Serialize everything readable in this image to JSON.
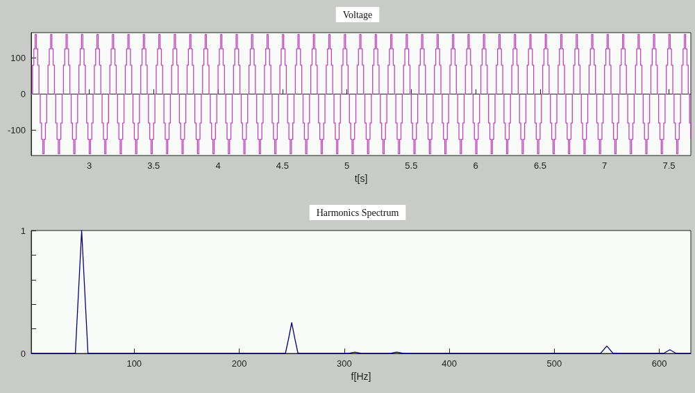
{
  "chart_data": [
    {
      "type": "step",
      "title": "Voltage",
      "xlabel": "t[s]",
      "xlim": [
        2.55,
        7.67
      ],
      "ylim": [
        -170,
        170
      ],
      "xticks": [
        3,
        3.5,
        4,
        4.5,
        5,
        5.5,
        6,
        6.5,
        7,
        7.5
      ],
      "yticks": [
        -100,
        0,
        100
      ],
      "x": [
        2.55,
        2.56,
        2.57,
        2.58,
        2.59,
        2.6,
        2.61,
        2.62,
        2.63,
        2.64,
        2.65,
        2.66,
        2.67,
        2.68,
        2.69,
        2.7,
        2.71,
        2.72,
        2.73,
        2.74,
        2.75,
        2.76,
        2.77,
        2.78,
        2.79,
        2.8,
        2.81,
        2.82,
        2.83,
        2.84,
        2.85,
        2.86,
        2.87,
        2.88,
        2.89,
        2.9,
        2.91,
        2.92,
        2.93,
        2.94,
        2.95,
        2.96,
        2.97,
        2.98,
        2.99,
        3,
        3.01,
        3.02,
        3.03,
        3.04,
        3.05,
        3.06,
        3.07,
        3.08,
        3.09,
        3.1,
        3.11,
        3.12,
        3.13,
        3.14,
        3.15,
        3.16,
        3.17,
        3.18,
        3.19,
        3.2,
        3.21,
        3.22,
        3.23,
        3.24,
        3.25,
        3.26,
        3.27,
        3.28,
        3.29,
        3.3,
        3.31,
        3.32,
        3.33,
        3.34,
        3.35,
        3.36,
        3.37,
        3.38,
        3.39,
        3.4,
        3.41,
        3.42,
        3.43,
        3.44,
        3.45,
        3.46,
        3.47,
        3.48,
        3.49,
        3.5,
        3.51,
        3.52,
        3.53,
        3.54,
        3.55,
        3.56,
        3.57,
        3.58,
        3.59,
        3.6,
        3.61,
        3.62,
        3.63,
        3.64,
        3.65,
        3.66,
        3.67,
        3.68,
        3.69,
        3.7,
        3.71,
        3.72,
        3.73,
        3.74,
        3.75,
        3.76,
        3.77,
        3.78,
        3.79,
        3.8,
        3.81,
        3.82,
        3.83,
        3.84,
        3.85,
        3.86,
        3.87,
        3.88,
        3.89,
        3.9,
        3.91,
        3.92,
        3.93,
        3.94,
        3.95,
        3.96,
        3.97,
        3.98,
        3.99,
        4,
        4.01,
        4.02,
        4.03,
        4.04,
        4.05,
        4.06,
        4.07,
        4.08,
        4.09,
        4.1,
        4.11,
        4.12,
        4.13,
        4.14,
        4.15,
        4.16,
        4.17,
        4.18,
        4.19,
        4.2,
        4.21,
        4.22,
        4.23,
        4.24,
        4.25,
        4.26,
        4.27,
        4.28,
        4.29,
        4.3,
        4.31,
        4.32,
        4.33,
        4.34,
        4.35,
        4.36,
        4.37,
        4.38,
        4.39,
        4.4,
        4.41,
        4.42,
        4.43,
        4.44,
        4.45,
        4.46,
        4.47,
        4.48,
        4.49,
        4.5,
        4.51,
        4.52,
        4.53,
        4.54,
        4.55,
        4.56,
        4.57,
        4.58,
        4.59,
        4.6,
        4.61,
        4.62,
        4.63,
        4.64,
        4.65,
        4.66,
        4.67,
        4.68,
        4.69,
        4.7,
        4.71,
        4.72,
        4.73,
        4.74,
        4.75,
        4.76,
        4.77,
        4.78,
        4.79,
        4.8,
        4.81,
        4.82,
        4.83,
        4.84,
        4.85,
        4.86,
        4.87,
        4.88,
        4.89,
        4.9,
        4.91,
        4.92,
        4.93,
        4.94,
        4.95,
        4.96,
        4.97,
        4.98,
        4.99,
        5,
        5.01,
        5.02,
        5.03,
        5.04,
        5.05,
        5.06,
        5.07,
        5.08,
        5.09,
        5.1,
        5.11,
        5.12,
        5.13,
        5.14,
        5.15,
        5.16,
        5.17,
        5.18,
        5.19,
        5.2,
        5.21,
        5.22,
        5.23,
        5.24,
        5.25,
        5.26,
        5.27,
        5.28,
        5.29,
        5.3,
        5.31,
        5.32,
        5.33,
        5.34,
        5.35,
        5.36,
        5.37,
        5.38,
        5.39,
        5.4,
        5.41,
        5.42,
        5.43,
        5.44,
        5.45,
        5.46,
        5.47,
        5.48,
        5.49,
        5.5,
        5.51,
        5.52,
        5.53,
        5.54,
        5.55,
        5.56,
        5.57,
        5.58,
        5.59,
        5.6,
        5.61,
        5.62,
        5.63,
        5.64,
        5.65,
        5.66,
        5.67,
        5.68,
        5.69,
        5.7,
        5.71,
        5.72,
        5.73,
        5.74,
        5.75,
        5.76,
        5.77,
        5.78,
        5.79,
        5.8,
        5.81,
        5.82,
        5.83,
        5.84,
        5.85,
        5.86,
        5.87,
        5.88,
        5.89,
        5.9,
        5.91,
        5.92,
        5.93,
        5.94,
        5.95,
        5.96,
        5.97,
        5.98,
        5.99,
        6,
        6.01,
        6.02,
        6.03,
        6.04,
        6.05,
        6.06,
        6.07,
        6.08,
        6.09,
        6.1,
        6.11,
        6.12,
        6.13,
        6.14,
        6.15,
        6.16,
        6.17,
        6.18,
        6.19,
        6.2,
        6.21,
        6.22,
        6.23,
        6.24,
        6.25,
        6.26,
        6.27,
        6.28,
        6.29,
        6.3,
        6.31,
        6.32,
        6.33,
        6.34,
        6.35,
        6.36,
        6.37,
        6.38,
        6.39,
        6.4,
        6.41,
        6.42,
        6.43,
        6.44,
        6.45,
        6.46,
        6.47,
        6.48,
        6.49,
        6.5,
        6.51,
        6.52,
        6.53,
        6.54,
        6.55,
        6.56,
        6.57,
        6.58,
        6.59,
        6.6,
        6.61,
        6.62,
        6.63,
        6.64,
        6.65,
        6.66,
        6.67,
        6.68,
        6.69,
        6.7,
        6.71,
        6.72,
        6.73,
        6.74,
        6.75,
        6.76,
        6.77,
        6.78,
        6.79,
        6.8,
        6.81,
        6.82,
        6.83,
        6.84,
        6.85,
        6.86,
        6.87,
        6.88,
        6.89,
        6.9,
        6.91,
        6.92,
        6.93,
        6.94,
        6.95,
        6.96,
        6.97,
        6.98,
        6.99,
        7,
        7.01,
        7.02,
        7.03,
        7.04,
        7.05,
        7.06,
        7.07,
        7.08,
        7.09,
        7.1,
        7.11,
        7.12,
        7.13,
        7.14,
        7.15,
        7.16,
        7.17,
        7.18,
        7.19,
        7.2,
        7.21,
        7.22,
        7.23,
        7.24,
        7.25,
        7.26,
        7.27,
        7.28,
        7.29,
        7.3,
        7.31,
        7.32,
        7.33,
        7.34,
        7.35,
        7.36,
        7.37,
        7.38,
        7.39,
        7.4,
        7.41,
        7.42,
        7.43,
        7.44,
        7.45,
        7.46,
        7.47,
        7.48,
        7.49,
        7.5,
        7.51,
        7.52,
        7.53,
        7.54,
        7.55,
        7.56,
        7.57,
        7.58,
        7.59,
        7.6,
        7.61,
        7.62,
        7.63,
        7.64,
        7.65,
        7.66,
        7.67
      ],
      "series": [
        {
          "color": "#c040c0",
          "values": [
            0,
            80,
            125,
            165,
            125,
            80,
            0,
            -80,
            -125,
            -165,
            -125,
            -80,
            0,
            80,
            125,
            165,
            125,
            80,
            0,
            -80,
            -125,
            -165,
            -125,
            -80,
            0,
            80,
            125,
            165,
            125,
            80,
            0,
            -80,
            -125,
            -165,
            -125,
            -80,
            0,
            80,
            125,
            165,
            125,
            80,
            0,
            -80,
            -125,
            -165,
            -125,
            -80,
            0,
            80,
            125,
            165,
            125,
            80,
            0,
            -80,
            -125,
            -165,
            -125,
            -80,
            0,
            80,
            125,
            165,
            125,
            80,
            0,
            -80,
            -125,
            -165,
            -125,
            -80,
            0,
            80,
            125,
            165,
            125,
            80,
            0,
            -80,
            -125,
            -165,
            -125,
            -80,
            0,
            80,
            125,
            165,
            125,
            80,
            0,
            -80,
            -125,
            -165,
            -125,
            -80,
            0,
            80,
            125,
            165,
            125,
            80,
            0,
            -80,
            -125,
            -165,
            -125,
            -80,
            0,
            80,
            125,
            165,
            125,
            80,
            0,
            -80,
            -125,
            -165,
            -125,
            -80,
            0,
            80,
            125,
            165,
            125,
            80,
            0,
            -80,
            -125,
            -165,
            -125,
            -80,
            0,
            80,
            125,
            165,
            125,
            80,
            0,
            -80,
            -125,
            -165,
            -125,
            -80,
            0,
            80,
            125,
            165,
            125,
            80,
            0,
            -80,
            -125,
            -165,
            -125,
            -80,
            0,
            80,
            125,
            165,
            125,
            80,
            0,
            -80,
            -125,
            -165,
            -125,
            -80,
            0,
            80,
            125,
            165,
            125,
            80,
            0,
            -80,
            -125,
            -165,
            -125,
            -80,
            0,
            80,
            125,
            165,
            125,
            80,
            0,
            -80,
            -125,
            -165,
            -125,
            -80,
            0,
            80,
            125,
            165,
            125,
            80,
            0,
            -80,
            -125,
            -165,
            -125,
            -80,
            0,
            80,
            125,
            165,
            125,
            80,
            0,
            -80,
            -125,
            -165,
            -125,
            -80,
            0,
            80,
            125,
            165,
            125,
            80,
            0,
            -80,
            -125,
            -165,
            -125,
            -80,
            0,
            80,
            125,
            165,
            125,
            80,
            0,
            -80,
            -125,
            -165,
            -125,
            -80,
            0,
            80,
            125,
            165,
            125,
            80,
            0,
            -80,
            -125,
            -165,
            -125,
            -80,
            0,
            80,
            125,
            165,
            125,
            80,
            0,
            -80,
            -125,
            -165,
            -125,
            -80,
            0,
            80,
            125,
            165,
            125,
            80,
            0,
            -80,
            -125,
            -165,
            -125,
            -80,
            0,
            80,
            125,
            165,
            125,
            80,
            0,
            -80,
            -125,
            -165,
            -125,
            -80,
            0,
            80,
            125,
            165,
            125,
            80,
            0,
            -80,
            -125,
            -165,
            -125,
            -80,
            0,
            80,
            125,
            165,
            125,
            80,
            0,
            -80,
            -125,
            -165,
            -125,
            -80,
            0,
            80,
            125,
            165,
            125,
            80,
            0,
            -80,
            -125,
            -165,
            -125,
            -80,
            0,
            80,
            125,
            165,
            125,
            80,
            0,
            -80,
            -125,
            -165,
            -125,
            -80,
            0,
            80,
            125,
            165,
            125,
            80,
            0,
            -80,
            -125,
            -165,
            -125,
            -80,
            0,
            80,
            125,
            165,
            125,
            80,
            0,
            -80,
            -125,
            -165,
            -125,
            -80,
            0,
            80,
            125,
            165,
            125,
            80,
            0,
            -80,
            -125,
            -165,
            -125,
            -80,
            0,
            80,
            125,
            165,
            125,
            80,
            0,
            -80,
            -125,
            -165,
            -125,
            -80,
            0,
            80,
            125,
            165,
            125,
            80,
            0,
            -80,
            -125,
            -165,
            -125,
            -80,
            0,
            80,
            125,
            165,
            125,
            80,
            0,
            -80,
            -125,
            -165,
            -125,
            -80,
            0,
            80,
            125,
            165,
            125,
            80,
            0,
            -80,
            -125,
            -165,
            -125,
            -80,
            0,
            80,
            125,
            165,
            125,
            80,
            0,
            -80,
            -125,
            -165,
            -125,
            -80,
            0,
            80,
            125,
            165,
            125,
            80,
            0,
            -80,
            -125,
            -165,
            -125,
            -80,
            0,
            80,
            125,
            165,
            125,
            80,
            0,
            -80,
            -125,
            -165,
            -125,
            -80,
            0,
            80,
            125,
            165,
            125,
            80,
            0,
            -80,
            -125,
            -165,
            -125,
            -80,
            0,
            80,
            125,
            165,
            125,
            80,
            0,
            -80,
            -125,
            -165,
            -125,
            -80,
            0,
            80,
            125,
            165,
            125,
            80,
            0,
            -80,
            -125,
            -165,
            -125,
            -80,
            0,
            80,
            125,
            165,
            125,
            80,
            0,
            -80,
            -125,
            -165,
            -125,
            -80,
            0,
            80,
            125,
            165,
            125,
            80,
            0,
            -80,
            -125
          ]
        }
      ]
    },
    {
      "type": "line",
      "title": "Harmonics Spectrum",
      "xlabel": "f[Hz]",
      "xlim": [
        2,
        630
      ],
      "ylim": [
        0,
        1
      ],
      "xticks": [
        100,
        200,
        300,
        400,
        500,
        600
      ],
      "yticks": [
        0,
        {
          "value": 0.2,
          "label": null
        },
        {
          "value": 0.4,
          "label": null
        },
        {
          "value": 0.6,
          "label": null
        },
        {
          "value": 0.8,
          "label": null
        },
        1
      ],
      "x": [
        2,
        44,
        47,
        50,
        53,
        56,
        244,
        247,
        250,
        253,
        256,
        304,
        310,
        316,
        344,
        350,
        356,
        544,
        550,
        556,
        604,
        610,
        616,
        630
      ],
      "series": [
        {
          "color": "#000080",
          "values": [
            0,
            0,
            0.5,
            1,
            0.5,
            0,
            0,
            0.12,
            0.25,
            0.12,
            0,
            0,
            0.01,
            0,
            0,
            0.01,
            0,
            0,
            0.06,
            0,
            0,
            0.03,
            0,
            0
          ]
        }
      ]
    }
  ]
}
